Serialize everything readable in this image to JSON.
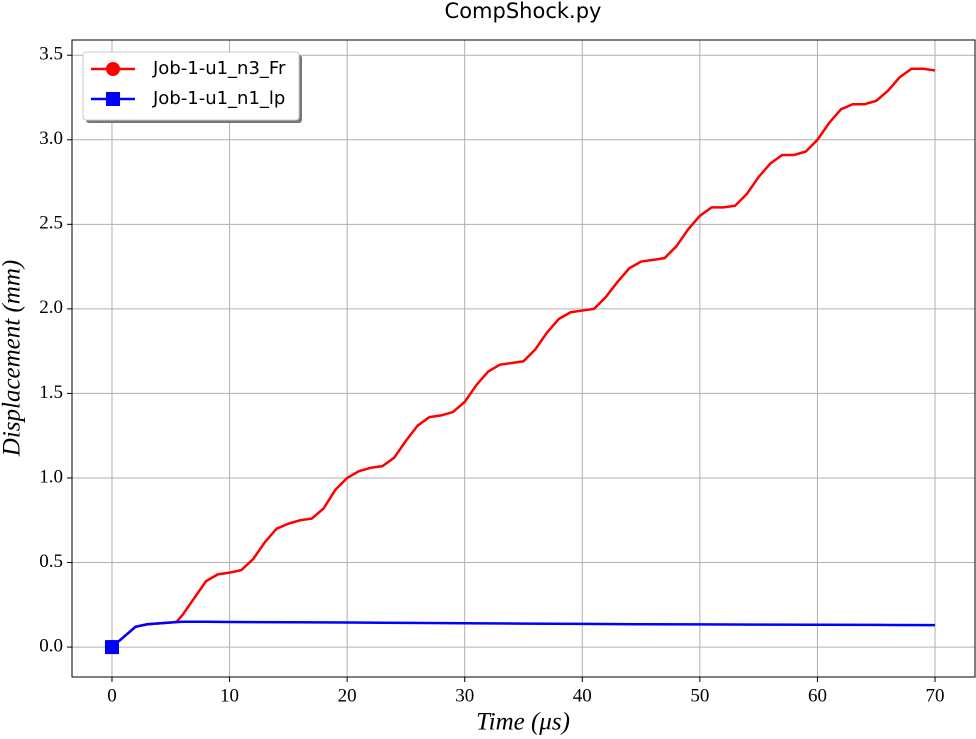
{
  "chart_data": {
    "type": "line",
    "title": "CompShock.py",
    "x_label": "Time (μs)",
    "y_label": "Displacement (mm)",
    "xlim": [
      -3.4,
      73.4
    ],
    "ylim": [
      -0.177,
      3.59
    ],
    "xticks": [
      0,
      10,
      20,
      30,
      40,
      50,
      60,
      70
    ],
    "yticks": [
      {
        "value": 0,
        "label": "0.0"
      },
      0.5,
      {
        "value": 1,
        "label": "1.0"
      },
      1.5,
      {
        "value": 2,
        "label": "2.0"
      },
      2.5,
      {
        "value": 3,
        "label": "3.0"
      },
      3.5
    ],
    "grid": true,
    "legend": "upper left",
    "series": [
      {
        "name": "Job-1-u1_n3_Fr",
        "color": "#ff0000",
        "marker": "circle",
        "x": [
          0,
          1,
          2,
          3,
          4,
          5,
          5.5,
          6,
          7,
          8,
          9,
          10,
          11,
          12,
          13,
          14,
          15,
          16,
          17,
          18,
          19,
          20,
          21,
          22,
          23,
          24,
          25,
          26,
          27,
          28,
          29,
          30,
          31,
          32,
          33,
          34,
          35,
          36,
          37,
          38,
          39,
          40,
          41,
          42,
          43,
          44,
          45,
          46,
          47,
          48,
          49,
          50,
          51,
          52,
          53,
          54,
          55,
          56,
          57,
          58,
          59,
          60,
          61,
          62,
          63,
          64,
          65,
          66,
          67,
          68,
          69,
          70
        ],
        "values": [
          0,
          0.06,
          0.12,
          0.135,
          0.14,
          0.145,
          0.15,
          0.19,
          0.29,
          0.39,
          0.43,
          0.44,
          0.455,
          0.52,
          0.62,
          0.7,
          0.73,
          0.75,
          0.76,
          0.82,
          0.93,
          1.0,
          1.04,
          1.06,
          1.07,
          1.12,
          1.22,
          1.31,
          1.36,
          1.37,
          1.39,
          1.45,
          1.55,
          1.63,
          1.67,
          1.68,
          1.69,
          1.76,
          1.86,
          1.94,
          1.98,
          1.99,
          2.0,
          2.07,
          2.16,
          2.24,
          2.28,
          2.29,
          2.3,
          2.37,
          2.47,
          2.55,
          2.6,
          2.6,
          2.61,
          2.68,
          2.78,
          2.86,
          2.91,
          2.91,
          2.93,
          3.0,
          3.1,
          3.18,
          3.21,
          3.21,
          3.23,
          3.29,
          3.37,
          3.42,
          3.42,
          3.41
        ]
      },
      {
        "name": "Job-1-u1_n1_lp",
        "color": "#0000ff",
        "marker": "square",
        "x": [
          0,
          1,
          2,
          3,
          4,
          5,
          6,
          7,
          8,
          10,
          15,
          20,
          25,
          30,
          35,
          40,
          45,
          50,
          55,
          60,
          65,
          70
        ],
        "values": [
          0,
          0.06,
          0.12,
          0.135,
          0.14,
          0.145,
          0.15,
          0.15,
          0.15,
          0.148,
          0.147,
          0.145,
          0.143,
          0.141,
          0.139,
          0.137,
          0.135,
          0.134,
          0.133,
          0.132,
          0.131,
          0.13
        ]
      }
    ]
  }
}
